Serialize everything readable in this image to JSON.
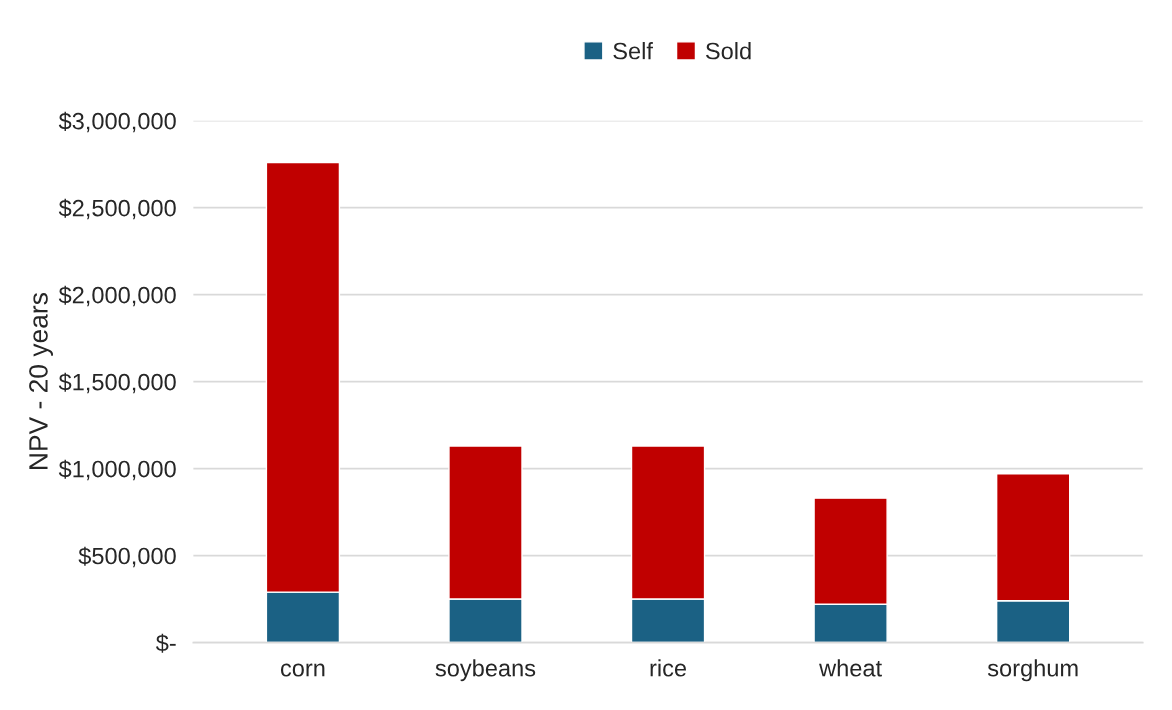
{
  "chart_data": {
    "type": "bar",
    "stacked": true,
    "ylabel": "NPV - 20 years",
    "categories": [
      "corn",
      "soybeans",
      "rice",
      "wheat",
      "sorghum"
    ],
    "series": [
      {
        "name": "Self",
        "color": "#1b6184",
        "values": [
          290000,
          250000,
          250000,
          220000,
          240000
        ]
      },
      {
        "name": "Sold",
        "color": "#c00000",
        "values": [
          2470000,
          880000,
          880000,
          610000,
          730000
        ]
      }
    ],
    "ylim": [
      0,
      3000000
    ],
    "yticks": [
      {
        "value": 0,
        "label": "$-"
      },
      {
        "value": 500000,
        "label": "$500,000"
      },
      {
        "value": 1000000,
        "label": "$1,000,000"
      },
      {
        "value": 1500000,
        "label": "$1,500,000"
      },
      {
        "value": 2000000,
        "label": "$2,000,000"
      },
      {
        "value": 2500000,
        "label": "$2,500,000"
      },
      {
        "value": 3000000,
        "label": "$3,000,000"
      }
    ],
    "grid": "y",
    "legend": "top"
  }
}
